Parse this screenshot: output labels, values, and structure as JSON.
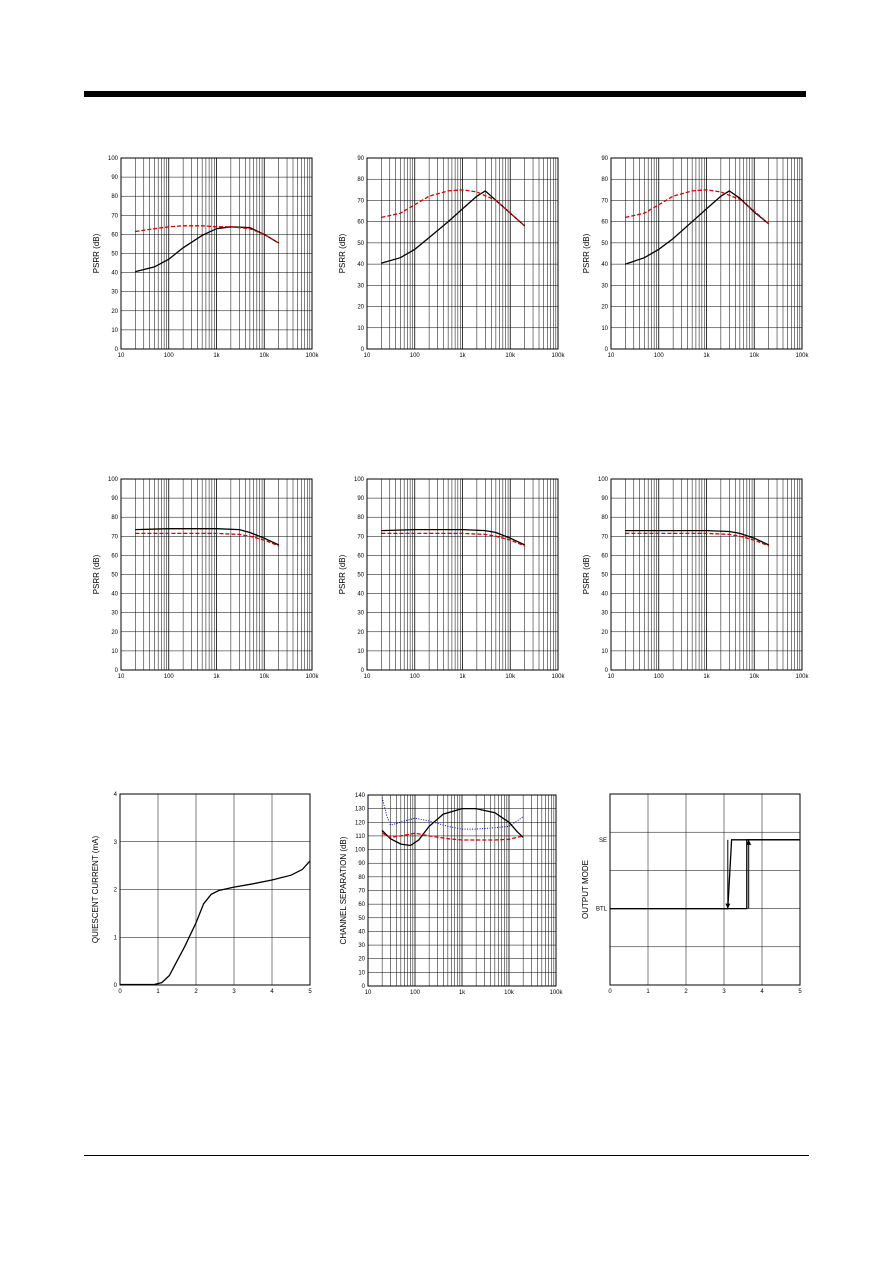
{
  "chart_data": [
    {
      "type": "line",
      "ylabel": "PSRR (dB)",
      "xscale": "log",
      "xlim": [
        10,
        100000
      ],
      "ylim": [
        0,
        100
      ],
      "x_tick_labels": [
        "10",
        "100",
        "1k",
        "10k",
        "100k"
      ],
      "y_tick_labels": [
        "0",
        "10",
        "20",
        "30",
        "40",
        "50",
        "60",
        "70",
        "80",
        "90",
        "100"
      ],
      "grid": true,
      "series": [
        {
          "color": "#000000",
          "dash": "solid",
          "x": [
            20,
            50,
            100,
            200,
            500,
            1000,
            2000,
            5000,
            10000,
            20000
          ],
          "y": [
            40.5,
            43,
            47,
            53,
            59.5,
            63,
            64,
            63.5,
            60,
            55.5
          ]
        },
        {
          "color": "#dd0000",
          "dash": "dashed",
          "x": [
            20,
            50,
            100,
            200,
            500,
            1000,
            2000,
            5000,
            10000,
            20000
          ],
          "y": [
            61.5,
            63,
            64,
            64.5,
            64.5,
            64,
            64,
            63,
            60,
            55.5
          ]
        }
      ]
    },
    {
      "type": "line",
      "ylabel": "PSRR (dB)",
      "xscale": "log",
      "xlim": [
        10,
        100000
      ],
      "ylim": [
        0,
        90
      ],
      "x_tick_labels": [
        "10",
        "100",
        "1k",
        "10k",
        "100k"
      ],
      "y_tick_labels": [
        "0",
        "10",
        "20",
        "30",
        "40",
        "50",
        "60",
        "70",
        "80",
        "90"
      ],
      "grid": true,
      "series": [
        {
          "color": "#000000",
          "dash": "solid",
          "x": [
            20,
            50,
            100,
            200,
            500,
            1000,
            2000,
            3000,
            5000,
            10000,
            20000
          ],
          "y": [
            40.5,
            43,
            47,
            52.5,
            60,
            66,
            72,
            74.5,
            70,
            64,
            58
          ]
        },
        {
          "color": "#dd0000",
          "dash": "dashed",
          "x": [
            20,
            50,
            100,
            200,
            500,
            1000,
            2000,
            5000,
            10000,
            20000
          ],
          "y": [
            62,
            64,
            68,
            72,
            74.5,
            75,
            74,
            70,
            64,
            58
          ]
        }
      ]
    },
    {
      "type": "line",
      "ylabel": "PSRR (dB)",
      "xscale": "log",
      "xlim": [
        10,
        100000
      ],
      "ylim": [
        0,
        90
      ],
      "x_tick_labels": [
        "10",
        "100",
        "1k",
        "10k",
        "100k"
      ],
      "y_tick_labels": [
        "0",
        "10",
        "20",
        "30",
        "40",
        "50",
        "60",
        "70",
        "80",
        "90"
      ],
      "grid": true,
      "series": [
        {
          "color": "#000000",
          "dash": "solid",
          "x": [
            20,
            50,
            100,
            200,
            500,
            1000,
            2000,
            3000,
            5000,
            10000,
            20000
          ],
          "y": [
            40,
            43,
            47,
            52,
            60,
            66,
            72,
            74.5,
            71,
            64.5,
            59
          ]
        },
        {
          "color": "#dd0000",
          "dash": "dashed",
          "x": [
            20,
            50,
            100,
            200,
            500,
            1000,
            2000,
            5000,
            10000,
            20000
          ],
          "y": [
            62,
            64,
            68,
            72,
            74.5,
            75,
            74,
            70.5,
            65,
            59
          ]
        }
      ]
    },
    {
      "type": "line",
      "ylabel": "PSRR (dB)",
      "xscale": "log",
      "xlim": [
        10,
        100000
      ],
      "ylim": [
        0,
        100
      ],
      "x_tick_labels": [
        "10",
        "100",
        "1k",
        "10k",
        "100k"
      ],
      "y_tick_labels": [
        "0",
        "10",
        "20",
        "30",
        "40",
        "50",
        "60",
        "70",
        "80",
        "90",
        "100"
      ],
      "grid": true,
      "series": [
        {
          "color": "#000000",
          "dash": "solid",
          "x": [
            20,
            100,
            1000,
            3000,
            5000,
            10000,
            20000
          ],
          "y": [
            73.5,
            74,
            74,
            73.5,
            72,
            69,
            65.5
          ]
        },
        {
          "color": "#dd0000",
          "dash": "dashed",
          "x": [
            20,
            100,
            1000,
            3000,
            5000,
            10000,
            20000
          ],
          "y": [
            71.5,
            71.5,
            71.5,
            71,
            70,
            68,
            65
          ]
        }
      ]
    },
    {
      "type": "line",
      "ylabel": "PSRR (dB)",
      "xscale": "log",
      "xlim": [
        10,
        100000
      ],
      "ylim": [
        0,
        100
      ],
      "x_tick_labels": [
        "10",
        "100",
        "1k",
        "10k",
        "100k"
      ],
      "y_tick_labels": [
        "0",
        "10",
        "20",
        "30",
        "40",
        "50",
        "60",
        "70",
        "80",
        "90",
        "100"
      ],
      "grid": true,
      "series": [
        {
          "color": "#000000",
          "dash": "solid",
          "x": [
            20,
            100,
            1000,
            3000,
            5000,
            10000,
            20000
          ],
          "y": [
            73,
            73.5,
            73.5,
            73,
            72,
            69,
            65.5
          ]
        },
        {
          "color": "#dd0000",
          "dash": "dashed",
          "x": [
            20,
            100,
            1000,
            3000,
            5000,
            10000,
            20000
          ],
          "y": [
            71.5,
            71.5,
            71.5,
            71,
            70,
            68,
            65
          ]
        }
      ]
    },
    {
      "type": "line",
      "ylabel": "PSRR (dB)",
      "xscale": "log",
      "xlim": [
        10,
        100000
      ],
      "ylim": [
        0,
        100
      ],
      "x_tick_labels": [
        "10",
        "100",
        "1k",
        "10k",
        "100k"
      ],
      "y_tick_labels": [
        "0",
        "10",
        "20",
        "30",
        "40",
        "50",
        "60",
        "70",
        "80",
        "90",
        "100"
      ],
      "grid": true,
      "series": [
        {
          "color": "#000000",
          "dash": "solid",
          "x": [
            20,
            100,
            1000,
            3000,
            5000,
            10000,
            20000
          ],
          "y": [
            73,
            73,
            73,
            72.5,
            71.5,
            69,
            65.5
          ]
        },
        {
          "color": "#dd0000",
          "dash": "dashed",
          "x": [
            20,
            100,
            1000,
            3000,
            5000,
            10000,
            20000
          ],
          "y": [
            71.5,
            71.5,
            71.5,
            71,
            70,
            68,
            65
          ]
        }
      ]
    },
    {
      "type": "line",
      "ylabel": "QUIESCENT CURRENT (mA)",
      "xscale": "linear",
      "xlim": [
        0,
        5
      ],
      "ylim": [
        0,
        4
      ],
      "x_tick_labels": [
        "0",
        "1",
        "2",
        "3",
        "4",
        "5"
      ],
      "y_tick_labels": [
        "0",
        "1",
        "2",
        "3",
        "4"
      ],
      "grid": true,
      "series": [
        {
          "color": "#000000",
          "dash": "solid",
          "x": [
            0,
            0.9,
            1.1,
            1.3,
            1.5,
            1.7,
            2.0,
            2.2,
            2.4,
            2.6,
            3.0,
            3.5,
            4.0,
            4.5,
            4.8,
            5.0
          ],
          "y": [
            0.01,
            0.01,
            0.05,
            0.2,
            0.5,
            0.8,
            1.3,
            1.7,
            1.9,
            1.98,
            2.05,
            2.12,
            2.2,
            2.3,
            2.42,
            2.6
          ]
        }
      ]
    },
    {
      "type": "line",
      "ylabel": "CHANNEL SEPARATION (dB)",
      "xscale": "log",
      "xlim": [
        10,
        100000
      ],
      "ylim": [
        0,
        140
      ],
      "x_tick_labels": [
        "10",
        "100",
        "1k",
        "10k",
        "100k"
      ],
      "y_tick_labels": [
        "0",
        "10",
        "20",
        "30",
        "40",
        "50",
        "60",
        "70",
        "80",
        "90",
        "100",
        "110",
        "120",
        "130",
        "140"
      ],
      "grid": true,
      "series": [
        {
          "color": "#000000",
          "dash": "solid",
          "x": [
            20,
            30,
            50,
            80,
            120,
            200,
            400,
            1000,
            2000,
            5000,
            10000,
            15000,
            20000
          ],
          "y": [
            114,
            108,
            104,
            103,
            107,
            117,
            126,
            130,
            130,
            127,
            120,
            113,
            109
          ]
        },
        {
          "color": "#dd0000",
          "dash": "dashed",
          "x": [
            20,
            30,
            50,
            100,
            200,
            500,
            1000,
            2000,
            5000,
            10000,
            20000
          ],
          "y": [
            112,
            109,
            110,
            112,
            110,
            108,
            107,
            107,
            107,
            107.5,
            110
          ]
        },
        {
          "color": "#0000cc",
          "dash": "dotted",
          "x": [
            20,
            25,
            30,
            40,
            60,
            100,
            200,
            500,
            1000,
            2000,
            5000,
            10000,
            20000
          ],
          "y": [
            138,
            125,
            118,
            119,
            121,
            123,
            121,
            117,
            115,
            115,
            116,
            117,
            124
          ]
        }
      ]
    },
    {
      "type": "line",
      "ylabel": "OUTPUT MODE",
      "xscale": "linear",
      "xlim": [
        0,
        5
      ],
      "ylim": [
        0,
        5
      ],
      "x_tick_labels": [
        "0",
        "1",
        "2",
        "3",
        "4",
        "5"
      ],
      "y_tick_labels": [
        "BTL",
        "SE"
      ],
      "y_tick_values": [
        2,
        3.8
      ],
      "grid": true,
      "series": [
        {
          "color": "#000000",
          "dash": "solid",
          "x": [
            0,
            3.6,
            3.6,
            5.0
          ],
          "y": [
            2,
            2,
            3.8,
            3.8
          ]
        },
        {
          "color": "#000000",
          "dash": "solid",
          "x": [
            0,
            3.1,
            3.2,
            5.0
          ],
          "y": [
            2,
            2,
            3.8,
            3.8
          ]
        }
      ],
      "arrows": [
        {
          "x": 3.1,
          "from": 3.8,
          "to": 2.0
        },
        {
          "x": 3.65,
          "from": 2.0,
          "to": 3.8
        }
      ]
    }
  ]
}
